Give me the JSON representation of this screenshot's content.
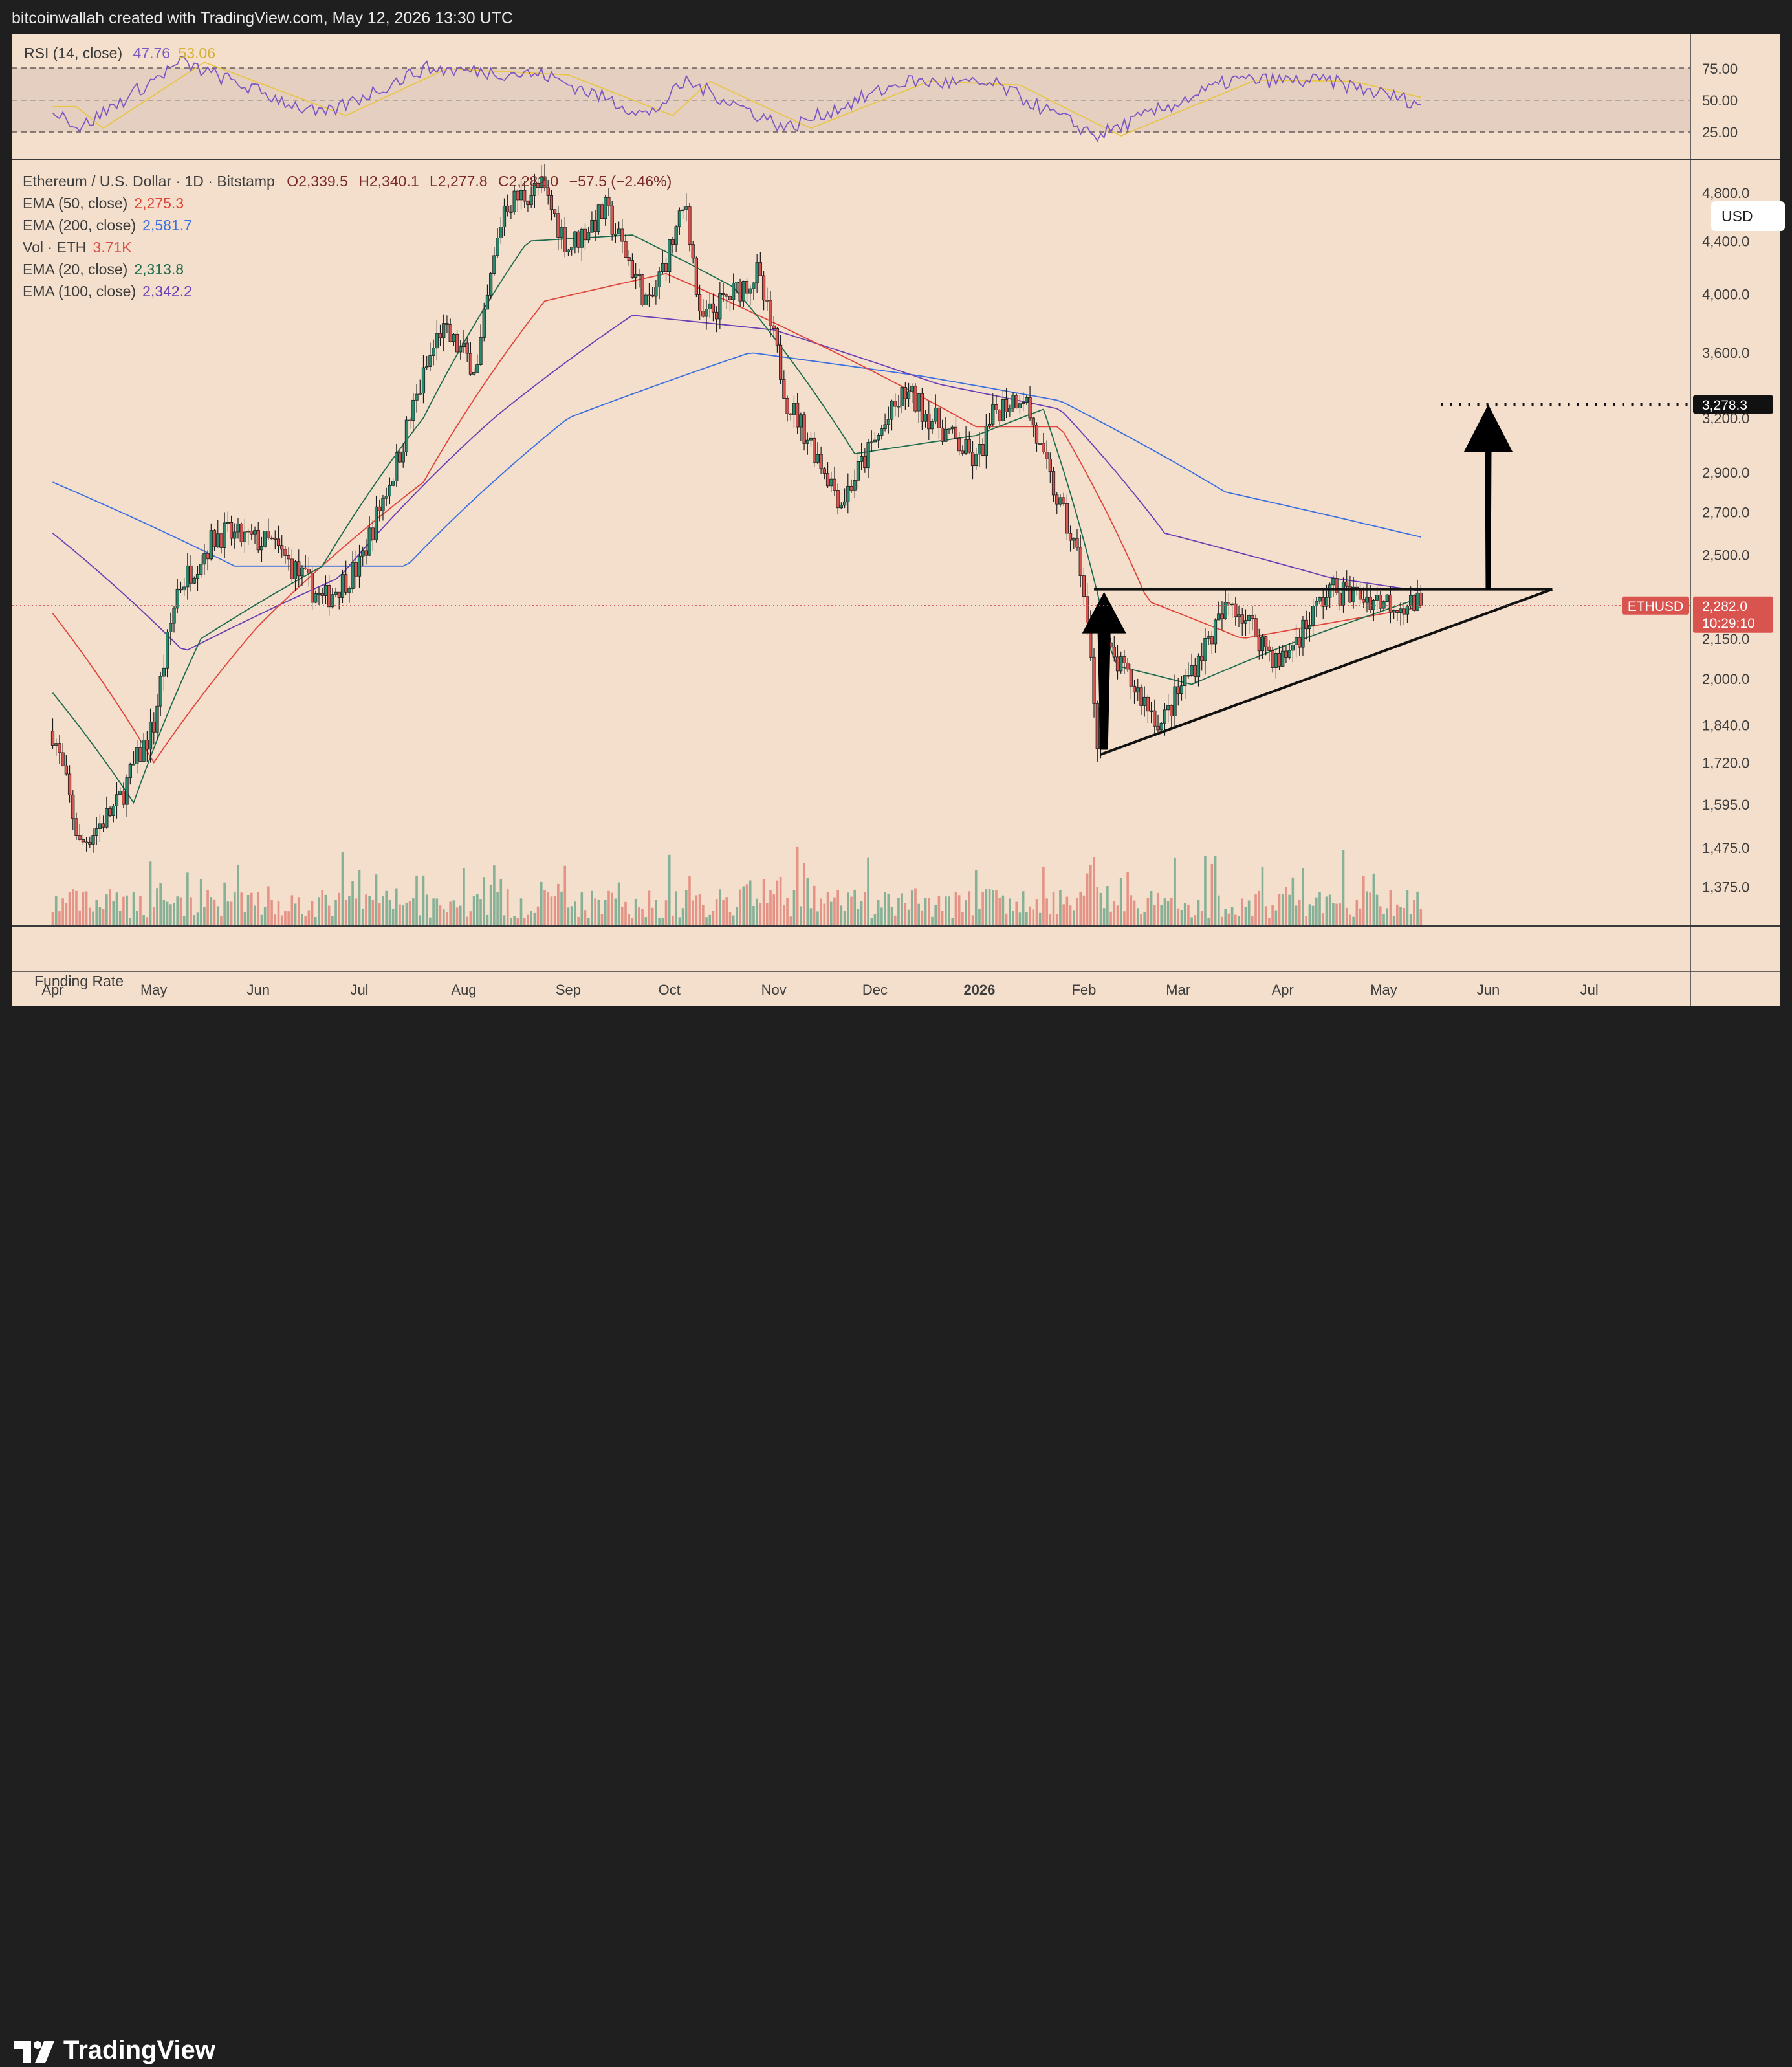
{
  "header": {
    "attribution": "bitcoinwallah created with TradingView.com, May 12, 2026 13:30 UTC"
  },
  "rsi_panel": {
    "label": "RSI (14, close)",
    "rsi_value": "47.76",
    "rsi_ma_value": "53.06",
    "levels": [
      "75.00",
      "50.00",
      "25.00"
    ]
  },
  "legend": {
    "symbol": "Ethereum / U.S. Dollar · 1D · Bitstamp",
    "open": "O2,339.5",
    "high": "H2,340.1",
    "low": "L2,277.8",
    "close": "C2,282.0",
    "change": "−57.5 (−2.46%)",
    "ema50_label": "EMA (50, close)",
    "ema50_value": "2,275.3",
    "ema200_label": "EMA (200, close)",
    "ema200_value": "2,581.7",
    "vol_label": "Vol · ETH",
    "vol_value": "3.71K",
    "ema20_label": "EMA (20, close)",
    "ema20_value": "2,313.8",
    "ema100_label": "EMA (100, close)",
    "ema100_value": "2,342.2"
  },
  "currency_button": "USD",
  "price_axis": [
    "4,800.0",
    "4,400.0",
    "4,000.0",
    "3,600.0",
    "3,200.0",
    "2,900.0",
    "2,700.0",
    "2,500.0",
    "2,150.0",
    "2,000.0",
    "1,840.0",
    "1,720.0",
    "1,595.0",
    "1,475.0",
    "1,375.0"
  ],
  "target_label": "3,278.3",
  "price_tag": {
    "symbol": "ETHUSD",
    "price": "2,282.0",
    "countdown": "10:29:10"
  },
  "funding_rate_label": "Funding Rate",
  "time_axis": [
    "Apr",
    "May",
    "Jun",
    "Jul",
    "Aug",
    "Sep",
    "Oct",
    "Nov",
    "Dec",
    "2026",
    "Feb",
    "Mar",
    "Apr",
    "May",
    "Jun",
    "Jul"
  ],
  "brand": "TradingView",
  "colors": {
    "up": "#2b8a6e",
    "down": "#d9534f",
    "ema20": "#1f6b4e",
    "ema50": "#e0443c",
    "ema100": "#6a3fb5",
    "ema200": "#3b6fe0",
    "rsi": "#7e57c2",
    "rsi_ma": "#e8c547",
    "background": "#f3dfcb",
    "price_tag": "#d9534f"
  },
  "chart_data": {
    "type": "candlestick",
    "symbol": "ETHUSD",
    "scale": "log",
    "ylim": [
      1290,
      5000
    ],
    "x_months": [
      "2025-04",
      "2025-05",
      "2025-06",
      "2025-07",
      "2025-08",
      "2025-09",
      "2025-10",
      "2025-11",
      "2025-12",
      "2026-01",
      "2026-02",
      "2026-03",
      "2026-04",
      "2026-05",
      "2026-06",
      "2026-07"
    ],
    "close_path": [
      [
        "2025-04-01",
        1820
      ],
      [
        "2025-04-09",
        1480
      ],
      [
        "2025-04-20",
        1590
      ],
      [
        "2025-05-01",
        1840
      ],
      [
        "2025-05-08",
        2350
      ],
      [
        "2025-05-20",
        2600
      ],
      [
        "2025-06-05",
        2550
      ],
      [
        "2025-06-20",
        2300
      ],
      [
        "2025-07-01",
        2450
      ],
      [
        "2025-07-12",
        2950
      ],
      [
        "2025-07-25",
        3750
      ],
      [
        "2025-08-05",
        3500
      ],
      [
        "2025-08-13",
        4700
      ],
      [
        "2025-08-24",
        4850
      ],
      [
        "2025-09-01",
        4350
      ],
      [
        "2025-09-12",
        4650
      ],
      [
        "2025-09-25",
        3900
      ],
      [
        "2025-10-06",
        4700
      ],
      [
        "2025-10-10",
        3800
      ],
      [
        "2025-10-27",
        4150
      ],
      [
        "2025-11-05",
        3300
      ],
      [
        "2025-11-21",
        2750
      ],
      [
        "2025-12-10",
        3350
      ],
      [
        "2025-12-31",
        2950
      ],
      [
        "2026-01-06",
        3250
      ],
      [
        "2026-01-14",
        3350
      ],
      [
        "2026-01-20",
        2950
      ],
      [
        "2026-01-31",
        2450
      ],
      [
        "2026-02-05",
        1800
      ],
      [
        "2026-02-08",
        2100
      ],
      [
        "2026-02-24",
        1840
      ],
      [
        "2026-03-17",
        2300
      ],
      [
        "2026-03-31",
        2050
      ],
      [
        "2026-04-15",
        2350
      ],
      [
        "2026-05-01",
        2300
      ],
      [
        "2026-05-12",
        2282
      ]
    ],
    "ema20": [
      [
        "2025-04-01",
        1950
      ],
      [
        "2025-04-25",
        1600
      ],
      [
        "2025-05-15",
        2150
      ],
      [
        "2025-06-20",
        2450
      ],
      [
        "2025-07-20",
        3200
      ],
      [
        "2025-08-20",
        4400
      ],
      [
        "2025-09-20",
        4450
      ],
      [
        "2025-10-20",
        4050
      ],
      [
        "2025-11-25",
        3000
      ],
      [
        "2025-12-31",
        3100
      ],
      [
        "2026-01-20",
        3250
      ],
      [
        "2026-02-10",
        2050
      ],
      [
        "2026-03-05",
        1980
      ],
      [
        "2026-04-01",
        2120
      ],
      [
        "2026-05-12",
        2313.8
      ]
    ],
    "ema50": [
      [
        "2025-04-01",
        2250
      ],
      [
        "2025-05-01",
        1720
      ],
      [
        "2025-06-01",
        2200
      ],
      [
        "2025-07-20",
        2850
      ],
      [
        "2025-08-25",
        3950
      ],
      [
        "2025-09-30",
        4150
      ],
      [
        "2025-11-10",
        3700
      ],
      [
        "2025-12-31",
        3150
      ],
      [
        "2026-01-25",
        3150
      ],
      [
        "2026-02-20",
        2300
      ],
      [
        "2026-03-20",
        2150
      ],
      [
        "2026-05-12",
        2275.3
      ]
    ],
    "ema100": [
      [
        "2025-04-01",
        2600
      ],
      [
        "2025-05-10",
        2100
      ],
      [
        "2025-06-25",
        2400
      ],
      [
        "2025-08-10",
        3200
      ],
      [
        "2025-09-20",
        3850
      ],
      [
        "2025-11-01",
        3750
      ],
      [
        "2025-12-20",
        3400
      ],
      [
        "2026-01-25",
        3250
      ],
      [
        "2026-02-25",
        2600
      ],
      [
        "2026-04-15",
        2400
      ],
      [
        "2026-05-12",
        2342.2
      ]
    ],
    "ema200": [
      [
        "2025-04-01",
        2850
      ],
      [
        "2025-05-25",
        2450
      ],
      [
        "2025-07-15",
        2450
      ],
      [
        "2025-09-01",
        3200
      ],
      [
        "2025-10-25",
        3600
      ],
      [
        "2025-12-15",
        3450
      ],
      [
        "2026-01-25",
        3300
      ],
      [
        "2026-03-15",
        2800
      ],
      [
        "2026-05-12",
        2581.7
      ]
    ],
    "rsi_path": [
      [
        "2025-04-01",
        45
      ],
      [
        "2025-04-09",
        28
      ],
      [
        "2025-05-09",
        80
      ],
      [
        "2025-06-20",
        38
      ],
      [
        "2025-07-20",
        75
      ],
      [
        "2025-08-25",
        70
      ],
      [
        "2025-09-25",
        38
      ],
      [
        "2025-10-06",
        65
      ],
      [
        "2025-11-05",
        28
      ],
      [
        "2025-12-10",
        65
      ],
      [
        "2026-01-06",
        62
      ],
      [
        "2026-02-05",
        22
      ],
      [
        "2026-03-17",
        66
      ],
      [
        "2026-04-15",
        65
      ],
      [
        "2026-05-12",
        47.76
      ]
    ],
    "annotations": {
      "triangle_resistance": 2350,
      "triangle_support_start": [
        "2026-02-06",
        1745
      ],
      "triangle_apex": [
        "2026-06-20",
        2350
      ],
      "breakout_target": 3278.3,
      "last_price": 2282.0
    }
  }
}
